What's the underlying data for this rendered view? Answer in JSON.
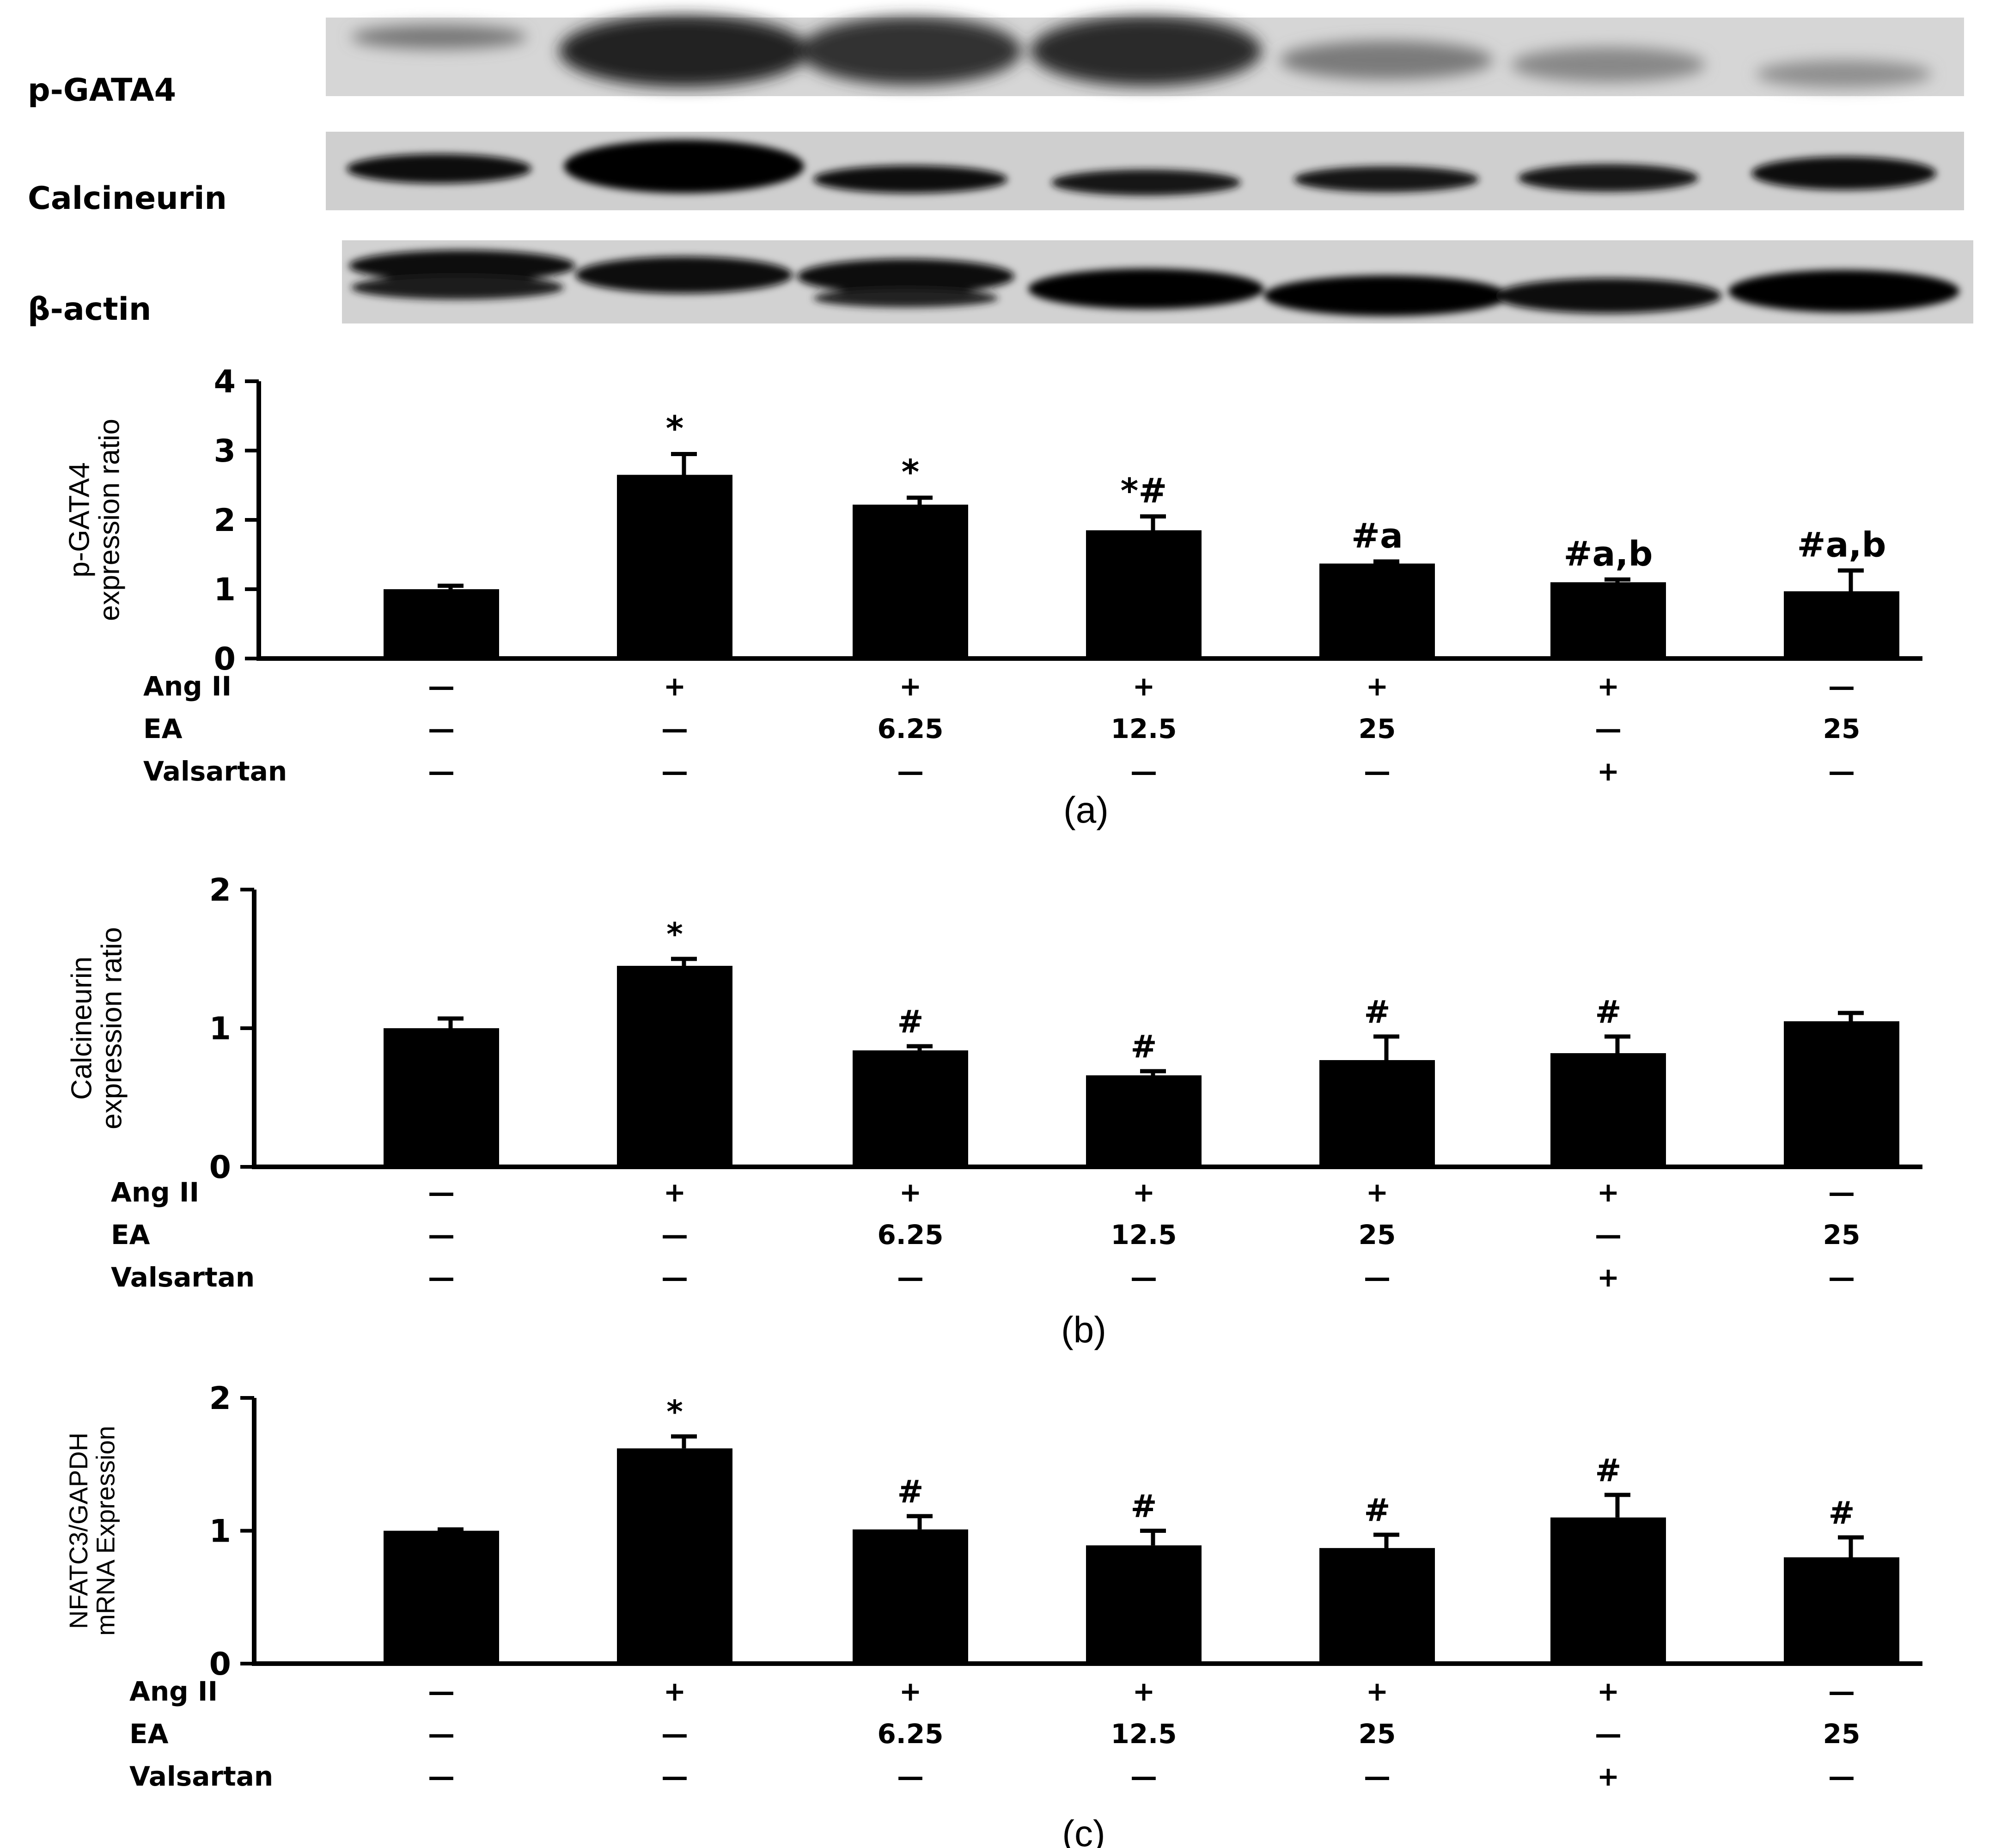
{
  "blots": [
    {
      "label": "p-GATA4"
    },
    {
      "label": "Calcineurin"
    },
    {
      "label": "β-actin"
    }
  ],
  "treatment_rows": [
    "Ang II",
    "EA",
    "Valsartan"
  ],
  "panels": [
    {
      "letter": "(a)"
    },
    {
      "letter": "(b)"
    },
    {
      "letter": "(c)"
    }
  ],
  "chart_data": [
    {
      "type": "bar",
      "ylabel_lines": [
        "p-GATA4",
        "expression ratio"
      ],
      "ylim": [
        0,
        4
      ],
      "yticks": [
        0,
        1,
        2,
        3,
        4
      ],
      "values": [
        1.0,
        2.65,
        2.22,
        1.85,
        1.37,
        1.1,
        0.97
      ],
      "errors": [
        0.05,
        0.3,
        0.1,
        0.2,
        0.03,
        0.04,
        0.3
      ],
      "annotations": [
        "",
        "*",
        "*",
        "*#",
        "#a",
        "#a,b",
        "#a,b"
      ],
      "treatments": {
        "Ang II": [
          "—",
          "+",
          "+",
          "+",
          "+",
          "+",
          "—"
        ],
        "EA": [
          "—",
          "—",
          "6.25",
          "12.5",
          "25",
          "—",
          "25"
        ],
        "Valsartan": [
          "—",
          "—",
          "—",
          "—",
          "—",
          "+",
          "—"
        ]
      },
      "color": "#000000"
    },
    {
      "type": "bar",
      "ylabel_lines": [
        "Calcineurin",
        "expression ratio"
      ],
      "ylim": [
        0,
        2
      ],
      "yticks": [
        0,
        1,
        2
      ],
      "values": [
        1.0,
        1.45,
        0.84,
        0.66,
        0.77,
        0.82,
        1.05
      ],
      "errors": [
        0.07,
        0.05,
        0.03,
        0.03,
        0.17,
        0.12,
        0.06
      ],
      "annotations": [
        "",
        "*",
        "#",
        "#",
        "#",
        "#",
        ""
      ],
      "treatments": {
        "Ang II": [
          "—",
          "+",
          "+",
          "+",
          "+",
          "+",
          "—"
        ],
        "EA": [
          "—",
          "—",
          "6.25",
          "12.5",
          "25",
          "—",
          "25"
        ],
        "Valsartan": [
          "—",
          "—",
          "—",
          "—",
          "—",
          "+",
          "—"
        ]
      },
      "color": "#000000"
    },
    {
      "type": "bar",
      "ylabel_lines": [
        "NFATC3/GAPDH",
        "mRNA Expression"
      ],
      "ylim": [
        0,
        2
      ],
      "yticks": [
        0,
        1,
        2
      ],
      "values": [
        1.0,
        1.62,
        1.01,
        0.89,
        0.87,
        1.1,
        0.8
      ],
      "errors": [
        0.01,
        0.09,
        0.1,
        0.11,
        0.1,
        0.17,
        0.15
      ],
      "annotations": [
        "",
        "*",
        "#",
        "#",
        "#",
        "#",
        "#"
      ],
      "treatments": {
        "Ang II": [
          "—",
          "+",
          "+",
          "+",
          "+",
          "+",
          "—"
        ],
        "EA": [
          "—",
          "—",
          "6.25",
          "12.5",
          "25",
          "—",
          "25"
        ],
        "Valsartan": [
          "—",
          "—",
          "—",
          "—",
          "—",
          "+",
          "—"
        ]
      },
      "color": "#000000"
    }
  ]
}
